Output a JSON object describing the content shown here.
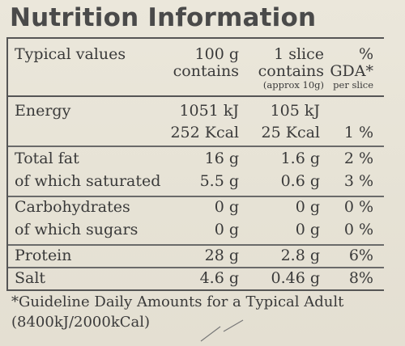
{
  "title": "Nutrition Information",
  "header": {
    "typical_values": "Typical values",
    "per100_line1": "100 g",
    "per100_line2": "contains",
    "slice_line1": "1 slice",
    "slice_line2": "contains",
    "slice_note": "(approx 10g)",
    "gda_line1": "%",
    "gda_line2": "GDA*",
    "gda_note": "per slice"
  },
  "rows": [
    {
      "label": "Energy",
      "per100": "1051 kJ",
      "slice": "105 kJ",
      "gda": ""
    },
    {
      "label": "",
      "per100": "252 Kcal",
      "slice": "25 Kcal",
      "gda": "1 %"
    },
    {
      "label": "Total fat",
      "per100": "16 g",
      "slice": "1.6 g",
      "gda": "2 %"
    },
    {
      "label": "of which saturated",
      "per100": "5.5 g",
      "slice": "0.6 g",
      "gda": "3 %"
    },
    {
      "label": "Carbohydrates",
      "per100": "0 g",
      "slice": "0 g",
      "gda": "0 %"
    },
    {
      "label": "of which sugars",
      "per100": "0 g",
      "slice": "0 g",
      "gda": "0 %"
    },
    {
      "label": "Protein",
      "per100": "28 g",
      "slice": "2.8 g",
      "gda": "6%"
    },
    {
      "label": "Salt",
      "per100": "4.6 g",
      "slice": "0.46 g",
      "gda": "8%"
    }
  ],
  "footnote_line1": "*Guideline Daily Amounts for a Typical Adult",
  "footnote_line2": "(8400kJ/2000kCal)"
}
